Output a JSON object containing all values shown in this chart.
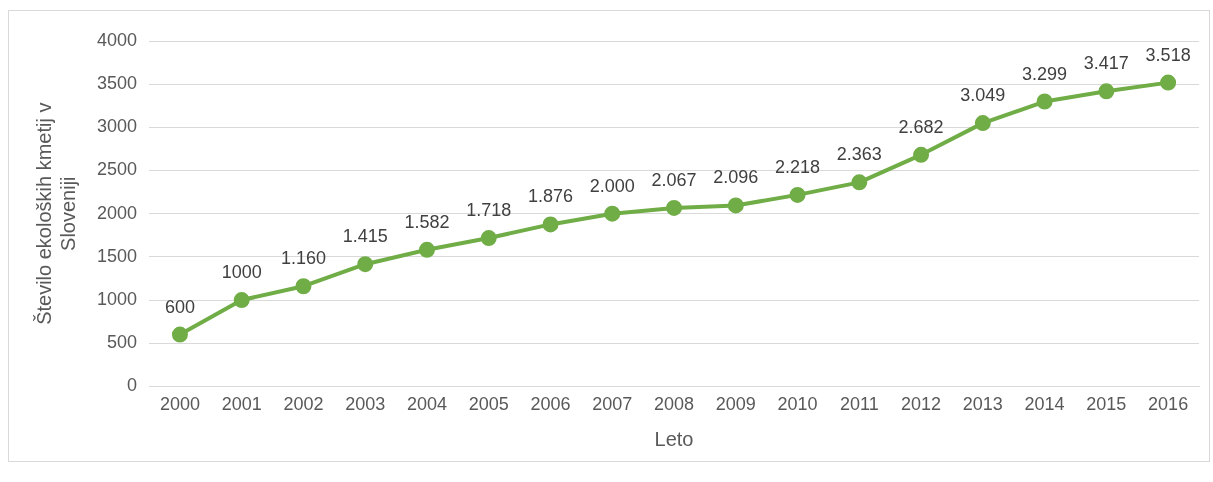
{
  "chart_data": {
    "type": "line",
    "xlabel": "Leto",
    "ylabel": "Število ekoloških kmetij v Sloveniji",
    "categories": [
      "2000",
      "2001",
      "2002",
      "2003",
      "2004",
      "2005",
      "2006",
      "2007",
      "2008",
      "2009",
      "2010",
      "2011",
      "2012",
      "2013",
      "2014",
      "2015",
      "2016"
    ],
    "series": [
      {
        "color": "#70ad47",
        "values": [
          600,
          1000,
          1160,
          1415,
          1582,
          1718,
          1876,
          2000,
          2067,
          2096,
          2218,
          2363,
          2682,
          3049,
          3299,
          3417,
          3518
        ],
        "value_labels": [
          "600",
          "1000",
          "1.160",
          "1.415",
          "1.582",
          "1.718",
          "1.876",
          "2.000",
          "2.067",
          "2.096",
          "2.218",
          "2.363",
          "2.682",
          "3.049",
          "3.299",
          "3.417",
          "3.518"
        ]
      }
    ],
    "ylim": [
      0,
      4000
    ],
    "yticks": [
      0,
      500,
      1000,
      1500,
      2000,
      2500,
      3000,
      3500,
      4000
    ],
    "grid": "y",
    "marker": "circle",
    "line_style": "solid",
    "legend": false
  }
}
